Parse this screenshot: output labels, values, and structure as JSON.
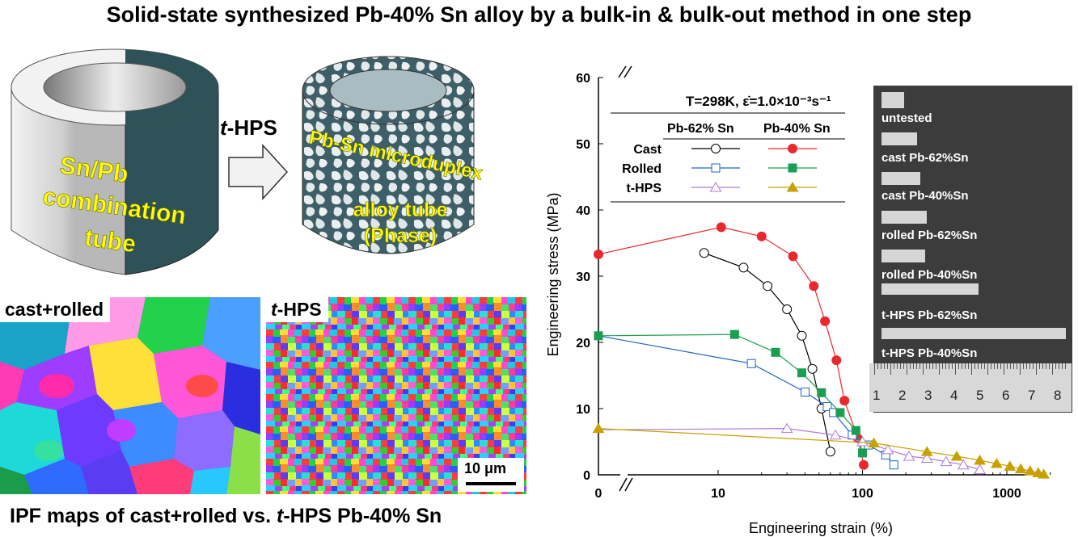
{
  "title": "Solid-state synthesized Pb-40% Sn alloy by a bulk-in & bulk-out method in one step",
  "tubes": {
    "left_lines": [
      "Sn/Pb",
      "combination",
      "tube"
    ],
    "right_lines": [
      "Pb-Sn microduplex",
      "alloy tube",
      "(Phase)"
    ],
    "arrow_label_italic": "t",
    "arrow_label_rest": "-HPS"
  },
  "ipf": {
    "left_label": "cast+rolled",
    "right_label_italic": "t",
    "right_label_rest": "-HPS",
    "scale_bar": "10 μm"
  },
  "caption": {
    "part1": "IPF maps of cast+rolled  vs.  ",
    "italic": "t",
    "part2": "-HPS Pb-40% Sn"
  },
  "photo": {
    "labels": [
      "untested",
      "cast Pb-62%Sn",
      "cast Pb-40%Sn",
      "rolled Pb-62%Sn",
      "rolled Pb-40%Sn",
      "t-HPS Pb-62%Sn",
      "t-HPS Pb-40%Sn"
    ],
    "ruler": [
      "1",
      "2",
      "3",
      "4",
      "5",
      "6",
      "7",
      "8"
    ]
  },
  "chart_data": {
    "type": "line",
    "xlabel": "Engineering strain (%)",
    "ylabel": "Engineering stress (MPa)",
    "x_scale": "log",
    "x_ticks": [
      "0",
      "10",
      "100",
      "1000"
    ],
    "y_ticks": [
      "0",
      "10",
      "20",
      "30",
      "40",
      "50",
      "60"
    ],
    "ylim": [
      0,
      60
    ],
    "condition": "T=298K, ε̇=1.0×10⁻³s⁻¹",
    "legend_header": [
      "Pb-62% Sn",
      "Pb-40% Sn"
    ],
    "legend_rows": [
      "Cast",
      "Rolled",
      "t-HPS"
    ],
    "series": [
      {
        "name": "Cast Pb-62% Sn",
        "color": "#000000",
        "marker": "circle-open",
        "points": [
          [
            8,
            33.5
          ],
          [
            15,
            31.3
          ],
          [
            22,
            28.5
          ],
          [
            30,
            25
          ],
          [
            38,
            21
          ],
          [
            45,
            16
          ],
          [
            52,
            10
          ],
          [
            60,
            3.5
          ]
        ]
      },
      {
        "name": "Cast Pb-40% Sn",
        "color": "#e8282e",
        "marker": "circle-filled",
        "points": [
          [
            0,
            33.3
          ],
          [
            10.5,
            37.4
          ],
          [
            20,
            36
          ],
          [
            33,
            33
          ],
          [
            46,
            28.5
          ],
          [
            55,
            23.2
          ],
          [
            66,
            17.3
          ],
          [
            75,
            11.2
          ],
          [
            93,
            5.5
          ],
          [
            102,
            1.5
          ]
        ]
      },
      {
        "name": "Rolled Pb-62% Sn",
        "color": "#1e64c8",
        "marker": "square-open",
        "points": [
          [
            0,
            21
          ],
          [
            17,
            16.8
          ],
          [
            40,
            12.5
          ],
          [
            57,
            10.3
          ],
          [
            63,
            9.4
          ],
          [
            85,
            6
          ],
          [
            110,
            4.5
          ],
          [
            145,
            3
          ],
          [
            165,
            1.5
          ]
        ]
      },
      {
        "name": "Rolled Pb-40% Sn",
        "color": "#1a9e52",
        "marker": "square-filled",
        "points": [
          [
            0,
            21
          ],
          [
            13,
            21.2
          ],
          [
            25,
            18.5
          ],
          [
            38,
            15.4
          ],
          [
            52,
            12.4
          ],
          [
            70,
            9.4
          ],
          [
            90,
            6.7
          ],
          [
            100,
            3.3
          ]
        ]
      },
      {
        "name": "t-HPS Pb-62% Sn",
        "color": "#b07ad6",
        "marker": "triangle-open",
        "points": [
          [
            0,
            6.8
          ],
          [
            30,
            7
          ],
          [
            65,
            6
          ],
          [
            100,
            5
          ],
          [
            150,
            3.8
          ],
          [
            210,
            2.8
          ],
          [
            280,
            2.5
          ],
          [
            380,
            2
          ],
          [
            500,
            1.5
          ],
          [
            650,
            0.8
          ]
        ]
      },
      {
        "name": "t-HPS Pb-40% Sn",
        "color": "#c8a000",
        "marker": "triangle-filled",
        "points": [
          [
            0,
            7
          ],
          [
            120,
            4.8
          ],
          [
            280,
            3.5
          ],
          [
            450,
            2.8
          ],
          [
            650,
            2.2
          ],
          [
            850,
            1.7
          ],
          [
            1050,
            1.3
          ],
          [
            1250,
            0.9
          ],
          [
            1450,
            0.6
          ],
          [
            1650,
            0.3
          ],
          [
            1800,
            0.1
          ]
        ]
      }
    ]
  }
}
